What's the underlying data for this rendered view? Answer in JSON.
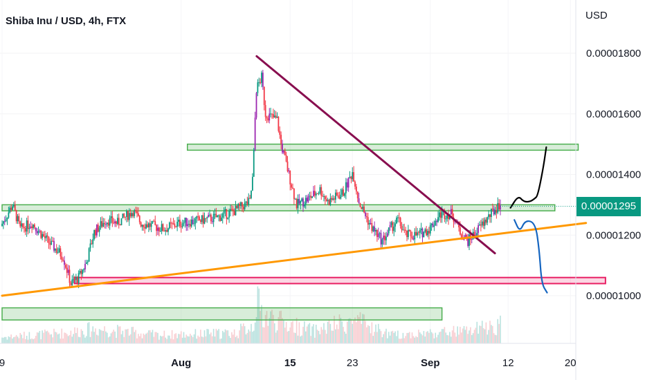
{
  "header": {
    "title": "Shiba Inu / USD, 4h, FTX",
    "currency": "USD",
    "last_price": "0.00001295"
  },
  "colors": {
    "up": "#089981",
    "down": "#f23645",
    "candle_pattern": "#9c27b0",
    "volume": "#d1d4dc",
    "resistance_zone": "#4caf50",
    "support_zone": "#e91e63",
    "trend_down": "#880e4f",
    "trend_up": "#ff9800",
    "path_up": "#000000",
    "path_down": "#1565c0"
  },
  "chart_data": {
    "type": "candlestick",
    "title": "Shiba Inu / USD, 4h, FTX",
    "ylabel": "USD",
    "ylim": [
      9.2e-06,
      1.84e-05
    ],
    "y_ticks": [
      "0.00001000",
      "0.00001200",
      "0.00001400",
      "0.00001600",
      "0.00001800"
    ],
    "y_tick_values": [
      1e-05,
      1.2e-05,
      1.4e-05,
      1.6e-05,
      1.8e-05
    ],
    "x_ticks": [
      "9",
      "Aug",
      "15",
      "23",
      "Sep",
      "12",
      "20"
    ],
    "x_tick_days": [
      0,
      23,
      37,
      45,
      55,
      65,
      73
    ],
    "x_bold": [
      false,
      true,
      true,
      false,
      true,
      false,
      false
    ],
    "xlim_days": [
      0,
      76
    ],
    "last_price": 1.295e-05,
    "price_path": [
      [
        0,
        1.23e-05
      ],
      [
        1.5,
        1.3e-05
      ],
      [
        2.5,
        1.22e-05
      ],
      [
        4,
        1.24e-05
      ],
      [
        6,
        1.18e-05
      ],
      [
        8,
        1.13e-05
      ],
      [
        9,
        1.04e-05
      ],
      [
        10,
        1.06e-05
      ],
      [
        11,
        1.11e-05
      ],
      [
        12,
        1.21e-05
      ],
      [
        13.5,
        1.25e-05
      ],
      [
        15,
        1.24e-05
      ],
      [
        17,
        1.28e-05
      ],
      [
        18,
        1.24e-05
      ],
      [
        21,
        1.22e-05
      ],
      [
        23,
        1.24e-05
      ],
      [
        26,
        1.25e-05
      ],
      [
        28,
        1.26e-05
      ],
      [
        30,
        1.28e-05
      ],
      [
        32,
        1.31e-05
      ],
      [
        32.4,
        1.4e-05
      ],
      [
        32.8,
        1.68e-05
      ],
      [
        33.5,
        1.72e-05
      ],
      [
        34,
        1.6e-05
      ],
      [
        35.5,
        1.58e-05
      ],
      [
        36,
        1.5e-05
      ],
      [
        37,
        1.4e-05
      ],
      [
        38,
        1.3e-05
      ],
      [
        39.5,
        1.32e-05
      ],
      [
        41,
        1.35e-05
      ],
      [
        42,
        1.31e-05
      ],
      [
        44,
        1.34e-05
      ],
      [
        45.2,
        1.41e-05
      ],
      [
        46,
        1.31e-05
      ],
      [
        47.5,
        1.23e-05
      ],
      [
        49,
        1.18e-05
      ],
      [
        50,
        1.22e-05
      ],
      [
        51,
        1.25e-05
      ],
      [
        52,
        1.2e-05
      ],
      [
        53.5,
        1.2e-05
      ],
      [
        55,
        1.22e-05
      ],
      [
        56.5,
        1.27e-05
      ],
      [
        58,
        1.27e-05
      ],
      [
        59,
        1.21e-05
      ],
      [
        60,
        1.18e-05
      ],
      [
        61,
        1.21e-05
      ],
      [
        62,
        1.24e-05
      ],
      [
        63,
        1.27e-05
      ],
      [
        64,
        1.3e-05
      ]
    ],
    "volume_path": [
      [
        0,
        0.15
      ],
      [
        8,
        0.25
      ],
      [
        12,
        0.35
      ],
      [
        20,
        0.2
      ],
      [
        30,
        0.25
      ],
      [
        32.3,
        0.45
      ],
      [
        32.6,
        1.0
      ],
      [
        33.5,
        0.7
      ],
      [
        36,
        0.5
      ],
      [
        40,
        0.3
      ],
      [
        45.2,
        0.55
      ],
      [
        50,
        0.2
      ],
      [
        55,
        0.25
      ],
      [
        60,
        0.3
      ],
      [
        64,
        0.45
      ]
    ],
    "zones": [
      {
        "type": "resistance",
        "day_from": 23.8,
        "day_to": 74,
        "top": 1.5e-05,
        "bottom": 1.48e-05
      },
      {
        "type": "resistance",
        "day_from": 0,
        "day_to": 71,
        "top": 1.3e-05,
        "bottom": 1.28e-05
      },
      {
        "type": "support",
        "day_from": 9.3,
        "day_to": 77.5,
        "top": 1.06e-05,
        "bottom": 1.04e-05
      },
      {
        "type": "resistance",
        "day_from": 0,
        "day_to": 56.5,
        "top": 9.6e-06,
        "bottom": 9.2e-06
      }
    ],
    "trendlines": [
      {
        "type": "down",
        "from": [
          32.7,
          1.79e-05
        ],
        "to": [
          63.3,
          1.14e-05
        ]
      },
      {
        "type": "up",
        "from": [
          0,
          1e-05
        ],
        "to": [
          75,
          1.24e-05
        ]
      }
    ],
    "projections": [
      {
        "type": "up",
        "points": [
          [
            65.3,
            1.29e-05
          ],
          [
            66.3,
            1.33e-05
          ],
          [
            67,
            1.31e-05
          ],
          [
            67.8,
            1.31e-05
          ],
          [
            68.4,
            1.32e-05
          ],
          [
            68.8,
            1.33e-05
          ],
          [
            69.5,
            1.42e-05
          ],
          [
            69.9,
            1.49e-05
          ]
        ]
      },
      {
        "type": "down",
        "points": [
          [
            65.8,
            1.25e-05
          ],
          [
            66.5,
            1.21e-05
          ],
          [
            67.2,
            1.25e-05
          ],
          [
            68.5,
            1.24e-05
          ],
          [
            69,
            1.15e-05
          ],
          [
            69.3,
            1.04e-05
          ],
          [
            70,
            1.01e-05
          ]
        ]
      }
    ]
  }
}
